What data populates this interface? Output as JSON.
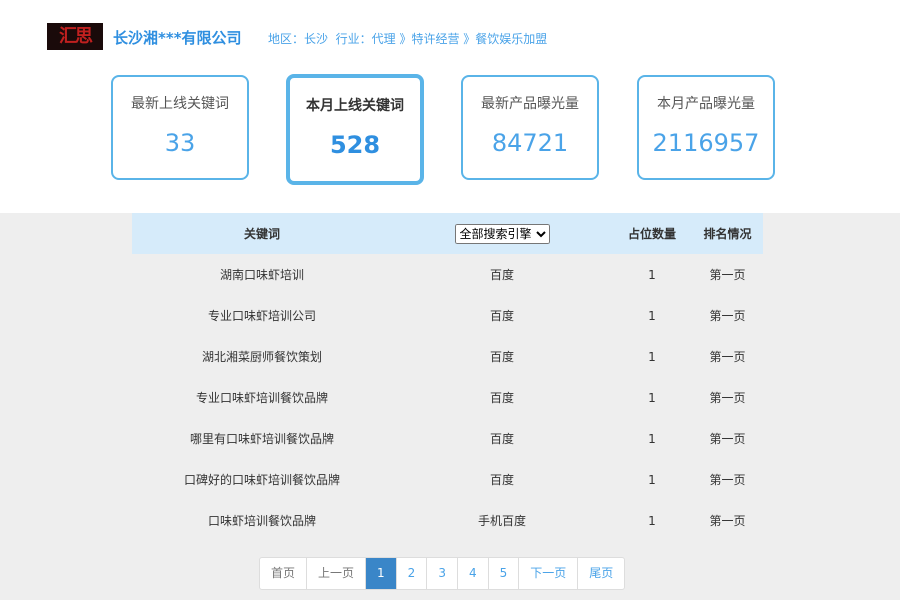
{
  "header": {
    "logo_text": "汇思",
    "company": "长沙湘***有限公司",
    "region": "地区：长沙",
    "industry": "行业：代理 》特许经营 》餐饮娱乐加盟"
  },
  "stats": [
    {
      "label": "最新上线关键词",
      "value": "33"
    },
    {
      "label": "本月上线关键词",
      "value": "528"
    },
    {
      "label": "最新产品曝光量",
      "value": "84721"
    },
    {
      "label": "本月产品曝光量",
      "value": "2116957"
    }
  ],
  "table": {
    "headers": {
      "keyword": "关键词",
      "engine": "全部搜索引擎",
      "count": "占位数量",
      "rank": "排名情况"
    },
    "rows": [
      {
        "keyword": "湖南口味虾培训",
        "engine": "百度",
        "count": "1",
        "rank": "第一页"
      },
      {
        "keyword": "专业口味虾培训公司",
        "engine": "百度",
        "count": "1",
        "rank": "第一页"
      },
      {
        "keyword": "湖北湘菜厨师餐饮策划",
        "engine": "百度",
        "count": "1",
        "rank": "第一页"
      },
      {
        "keyword": "专业口味虾培训餐饮品牌",
        "engine": "百度",
        "count": "1",
        "rank": "第一页"
      },
      {
        "keyword": "哪里有口味虾培训餐饮品牌",
        "engine": "百度",
        "count": "1",
        "rank": "第一页"
      },
      {
        "keyword": "口碑好的口味虾培训餐饮品牌",
        "engine": "百度",
        "count": "1",
        "rank": "第一页"
      },
      {
        "keyword": "口味虾培训餐饮品牌",
        "engine": "手机百度",
        "count": "1",
        "rank": "第一页"
      }
    ]
  },
  "pager": {
    "first": "首页",
    "prev": "上一页",
    "pages": [
      "1",
      "2",
      "3",
      "4",
      "5"
    ],
    "next": "下一页",
    "last": "尾页",
    "current": "1"
  }
}
